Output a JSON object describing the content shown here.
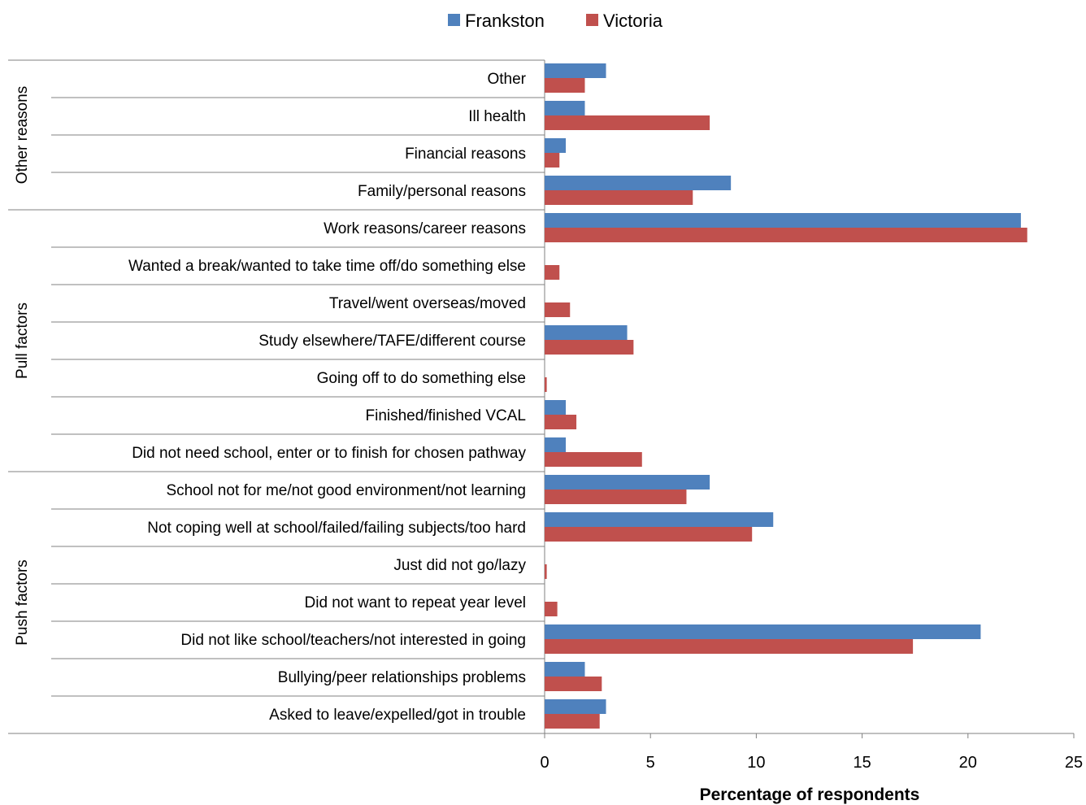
{
  "chart_data": {
    "type": "bar",
    "orientation": "horizontal",
    "xlabel": "Percentage of respondents",
    "xlim": [
      0,
      25
    ],
    "xticks": [
      0,
      5,
      10,
      15,
      20,
      25
    ],
    "legend_position": "top-center",
    "grid": false,
    "groups": [
      {
        "name": "Other reasons",
        "categories": [
          "Other",
          "Ill health",
          "Financial reasons",
          "Family/personal reasons"
        ]
      },
      {
        "name": "Pull factors",
        "categories": [
          "Work reasons/career reasons",
          "Wanted a break/wanted to take time off/do something else",
          "Travel/went overseas/moved",
          "Study elsewhere/TAFE/different course",
          "Going off to do something else",
          "Finished/finished VCAL",
          "Did not need school, enter or to finish for chosen pathway"
        ]
      },
      {
        "name": "Push factors",
        "categories": [
          "School not for me/not good environment/not learning",
          "Not coping well at school/failed/failing subjects/too hard",
          "Just did not go/lazy",
          "Did not want to repeat year level",
          "Did not like school/teachers/not interested in going",
          "Bullying/peer relationships problems",
          "Asked to leave/expelled/got in trouble"
        ]
      }
    ],
    "categories": [
      "Other",
      "Ill health",
      "Financial reasons",
      "Family/personal reasons",
      "Work reasons/career reasons",
      "Wanted a break/wanted to take time off/do something else",
      "Travel/went overseas/moved",
      "Study elsewhere/TAFE/different course",
      "Going off to do something else",
      "Finished/finished VCAL",
      "Did not need school, enter or to finish for chosen pathway",
      "School not for me/not good environment/not learning",
      "Not coping well at school/failed/failing subjects/too hard",
      "Just did not go/lazy",
      "Did not want to repeat year level",
      "Did not like school/teachers/not interested in going",
      "Bullying/peer relationships problems",
      "Asked to leave/expelled/got in trouble"
    ],
    "series": [
      {
        "name": "Frankston",
        "color": "#4F81BD",
        "values": [
          2.9,
          1.9,
          1.0,
          8.8,
          22.5,
          0,
          0,
          3.9,
          0,
          1.0,
          1.0,
          7.8,
          10.8,
          0,
          0,
          20.6,
          1.9,
          2.9
        ]
      },
      {
        "name": "Victoria",
        "color": "#C0504D",
        "values": [
          1.9,
          7.8,
          0.7,
          7.0,
          22.8,
          0.7,
          1.2,
          4.2,
          0.1,
          1.5,
          4.6,
          6.7,
          9.8,
          0.1,
          0.6,
          17.4,
          2.7,
          2.6
        ]
      }
    ]
  }
}
